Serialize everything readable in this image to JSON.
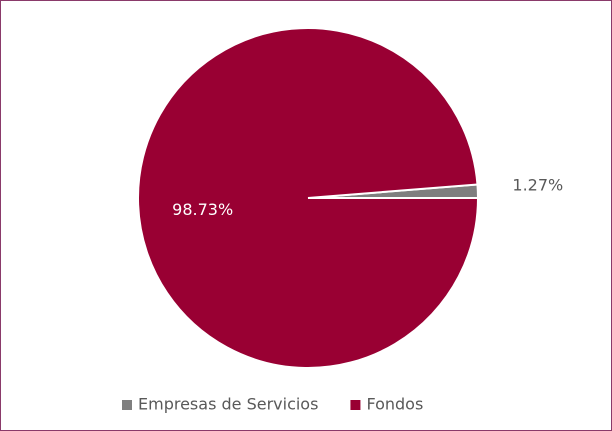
{
  "chart_data": {
    "type": "pie",
    "categories": [
      "Empresas de Servicios",
      "Fondos"
    ],
    "values": [
      1.27,
      98.73
    ],
    "value_labels": [
      "1.27%",
      "98.73%"
    ],
    "colors": [
      "#7f7f7f",
      "#990033"
    ],
    "legend": "bottom"
  }
}
